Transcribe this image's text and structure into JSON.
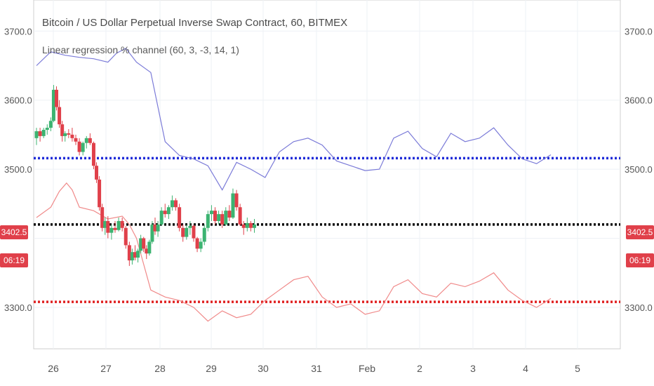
{
  "header": {
    "title": "Bitcoin / US Dollar Perpetual Inverse Swap Contract, 60, BITMEX",
    "indicator": "Linear regression % channel (60, 3, -3, 14, 1)"
  },
  "badges": {
    "price": "3402.5",
    "time": "06:19"
  },
  "colors": {
    "upper": "#7b7bd8",
    "lower": "#f08a8a",
    "bull": "#3cb371",
    "bear": "#e0404a",
    "blue_dotted": "#1f2bd8",
    "red_dotted": "#e02020",
    "black_dotted": "#000000",
    "badge": "#e0404a"
  },
  "chart_data": {
    "type": "line",
    "ylim": [
      3240,
      3745
    ],
    "xlim": [
      25.6,
      5.85
    ],
    "yticks": [
      3300.0,
      3400.0,
      3500.0,
      3600.0,
      3700.0
    ],
    "ytick_labels": [
      "3300.0",
      "3500.0",
      "3600.0",
      "3700.0"
    ],
    "xtick_labels": [
      "26",
      "27",
      "28",
      "29",
      "30",
      "31",
      "Feb",
      "2",
      "3",
      "4",
      "5"
    ],
    "grid": true,
    "hlines": [
      {
        "name": "blue",
        "value": 3516
      },
      {
        "name": "black",
        "value": 3420
      },
      {
        "name": "red",
        "value": 3308
      }
    ],
    "upper_channel": [
      [
        0,
        3650
      ],
      [
        2,
        3670
      ],
      [
        4,
        3665
      ],
      [
        6,
        3662
      ],
      [
        8,
        3660
      ],
      [
        10,
        3655
      ],
      [
        11.2,
        3668
      ],
      [
        12.5,
        3675
      ],
      [
        14,
        3655
      ],
      [
        16,
        3640
      ],
      [
        18,
        3540
      ],
      [
        20,
        3520
      ],
      [
        22,
        3515
      ],
      [
        24,
        3505
      ],
      [
        26,
        3470
      ],
      [
        28,
        3510
      ],
      [
        30,
        3500
      ],
      [
        32,
        3488
      ],
      [
        34,
        3525
      ],
      [
        36,
        3540
      ],
      [
        38,
        3545
      ],
      [
        40,
        3535
      ],
      [
        42,
        3512
      ],
      [
        44,
        3505
      ],
      [
        46,
        3498
      ],
      [
        48,
        3500
      ],
      [
        50,
        3545
      ],
      [
        52,
        3555
      ],
      [
        54,
        3530
      ],
      [
        56,
        3518
      ],
      [
        58,
        3552
      ],
      [
        60,
        3540
      ],
      [
        62,
        3545
      ],
      [
        64,
        3560
      ],
      [
        66,
        3535
      ],
      [
        68,
        3515
      ],
      [
        70,
        3508
      ],
      [
        72,
        3521
      ]
    ],
    "lower_channel": [
      [
        0,
        3430
      ],
      [
        2,
        3445
      ],
      [
        3.2,
        3468
      ],
      [
        4.2,
        3480
      ],
      [
        5,
        3470
      ],
      [
        6,
        3445
      ],
      [
        8,
        3440
      ],
      [
        10,
        3428
      ],
      [
        12,
        3432
      ],
      [
        13,
        3420
      ],
      [
        14,
        3400
      ],
      [
        16,
        3325
      ],
      [
        18,
        3315
      ],
      [
        20,
        3310
      ],
      [
        22,
        3300
      ],
      [
        24,
        3280
      ],
      [
        26,
        3295
      ],
      [
        28,
        3285
      ],
      [
        30,
        3290
      ],
      [
        32,
        3310
      ],
      [
        34,
        3325
      ],
      [
        36,
        3340
      ],
      [
        38,
        3345
      ],
      [
        40,
        3315
      ],
      [
        42,
        3300
      ],
      [
        44,
        3305
      ],
      [
        46,
        3290
      ],
      [
        48,
        3295
      ],
      [
        50,
        3330
      ],
      [
        52,
        3340
      ],
      [
        54,
        3320
      ],
      [
        56,
        3315
      ],
      [
        58,
        3335
      ],
      [
        60,
        3330
      ],
      [
        62,
        3338
      ],
      [
        64,
        3350
      ],
      [
        66,
        3325
      ],
      [
        68,
        3310
      ],
      [
        70,
        3300
      ],
      [
        72,
        3313
      ]
    ],
    "candles": [
      [
        0,
        3545,
        3560,
        3535,
        3555
      ],
      [
        0.5,
        3555,
        3560,
        3540,
        3548
      ],
      [
        1,
        3548,
        3560,
        3545,
        3557
      ],
      [
        1.5,
        3557,
        3565,
        3550,
        3560
      ],
      [
        2,
        3560,
        3575,
        3555,
        3570
      ],
      [
        2.4,
        3570,
        3622,
        3568,
        3615
      ],
      [
        2.8,
        3615,
        3620,
        3585,
        3590
      ],
      [
        3.2,
        3590,
        3600,
        3560,
        3565
      ],
      [
        3.6,
        3565,
        3570,
        3540,
        3548
      ],
      [
        4,
        3548,
        3555,
        3540,
        3552
      ],
      [
        4.5,
        3552,
        3558,
        3545,
        3550
      ],
      [
        5,
        3550,
        3560,
        3540,
        3545
      ],
      [
        5.5,
        3545,
        3550,
        3535,
        3540
      ],
      [
        6,
        3540,
        3545,
        3520,
        3525
      ],
      [
        6.5,
        3525,
        3540,
        3520,
        3538
      ],
      [
        7,
        3538,
        3548,
        3530,
        3545
      ],
      [
        7.5,
        3545,
        3552,
        3535,
        3538
      ],
      [
        8,
        3538,
        3540,
        3500,
        3505
      ],
      [
        8.4,
        3505,
        3510,
        3480,
        3485
      ],
      [
        8.8,
        3485,
        3490,
        3440,
        3445
      ],
      [
        9.2,
        3445,
        3450,
        3410,
        3415
      ],
      [
        9.6,
        3415,
        3430,
        3405,
        3425
      ],
      [
        10,
        3425,
        3432,
        3400,
        3408
      ],
      [
        10.5,
        3408,
        3420,
        3398,
        3415
      ],
      [
        11,
        3415,
        3425,
        3408,
        3412
      ],
      [
        11.5,
        3412,
        3430,
        3410,
        3425
      ],
      [
        12,
        3425,
        3430,
        3410,
        3415
      ],
      [
        12.5,
        3415,
        3418,
        3385,
        3390
      ],
      [
        13,
        3390,
        3395,
        3360,
        3368
      ],
      [
        13.4,
        3368,
        3385,
        3362,
        3380
      ],
      [
        13.8,
        3380,
        3390,
        3368,
        3372
      ],
      [
        14.2,
        3372,
        3385,
        3365,
        3382
      ],
      [
        14.6,
        3382,
        3405,
        3378,
        3400
      ],
      [
        15,
        3400,
        3402,
        3380,
        3385
      ],
      [
        15.4,
        3385,
        3390,
        3370,
        3378
      ],
      [
        15.8,
        3378,
        3398,
        3375,
        3395
      ],
      [
        16.2,
        3395,
        3425,
        3392,
        3420
      ],
      [
        16.6,
        3420,
        3430,
        3405,
        3410
      ],
      [
        17,
        3410,
        3425,
        3402,
        3420
      ],
      [
        17.5,
        3420,
        3445,
        3418,
        3440
      ],
      [
        18,
        3440,
        3450,
        3430,
        3435
      ],
      [
        18.5,
        3435,
        3448,
        3428,
        3445
      ],
      [
        19,
        3445,
        3462,
        3440,
        3455
      ],
      [
        19.5,
        3455,
        3458,
        3440,
        3445
      ],
      [
        20,
        3445,
        3450,
        3410,
        3415
      ],
      [
        20.5,
        3415,
        3420,
        3395,
        3402
      ],
      [
        21,
        3402,
        3420,
        3398,
        3415
      ],
      [
        21.5,
        3415,
        3425,
        3405,
        3418
      ],
      [
        22,
        3418,
        3420,
        3395,
        3400
      ],
      [
        22.5,
        3400,
        3402,
        3380,
        3385
      ],
      [
        23,
        3385,
        3400,
        3380,
        3395
      ],
      [
        23.5,
        3395,
        3420,
        3390,
        3415
      ],
      [
        24,
        3415,
        3440,
        3410,
        3435
      ],
      [
        24.5,
        3435,
        3448,
        3425,
        3440
      ],
      [
        25,
        3440,
        3445,
        3420,
        3425
      ],
      [
        25.5,
        3425,
        3440,
        3420,
        3435
      ],
      [
        26,
        3435,
        3440,
        3415,
        3420
      ],
      [
        26.5,
        3420,
        3445,
        3418,
        3440
      ],
      [
        27,
        3440,
        3448,
        3425,
        3430
      ],
      [
        27.5,
        3430,
        3472,
        3428,
        3465
      ],
      [
        28,
        3465,
        3470,
        3440,
        3445
      ],
      [
        28.5,
        3445,
        3450,
        3418,
        3420
      ],
      [
        29,
        3420,
        3425,
        3405,
        3415
      ],
      [
        29.5,
        3415,
        3430,
        3410,
        3422
      ],
      [
        30,
        3422,
        3425,
        3410,
        3415
      ],
      [
        30.5,
        3415,
        3428,
        3408,
        3420
      ]
    ]
  }
}
